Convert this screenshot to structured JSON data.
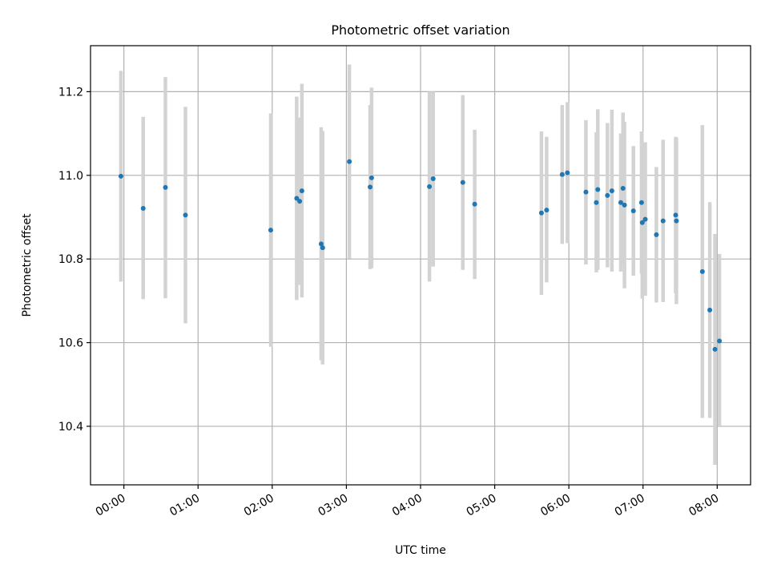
{
  "chart_data": {
    "type": "scatter",
    "title": "Photometric offset variation",
    "xlabel": "UTC time",
    "ylabel": "Photometric offset",
    "xlim": [
      -0.45,
      8.45
    ],
    "ylim": [
      10.26,
      11.31
    ],
    "grid": true,
    "x_ticks": [
      {
        "value": 0,
        "label": "00:00"
      },
      {
        "value": 1,
        "label": "01:00"
      },
      {
        "value": 2,
        "label": "02:00"
      },
      {
        "value": 3,
        "label": "03:00"
      },
      {
        "value": 4,
        "label": "04:00"
      },
      {
        "value": 5,
        "label": "05:00"
      },
      {
        "value": 6,
        "label": "06:00"
      },
      {
        "value": 7,
        "label": "07:00"
      },
      {
        "value": 8,
        "label": "08:00"
      }
    ],
    "y_ticks": [
      {
        "value": 10.4,
        "label": "10.4"
      },
      {
        "value": 10.6,
        "label": "10.6"
      },
      {
        "value": 10.8,
        "label": "10.8"
      },
      {
        "value": 11.0,
        "label": "11.0"
      },
      {
        "value": 11.2,
        "label": "11.2"
      }
    ],
    "marker_color": "#1f77b4",
    "errorbar_color": "#d3d3d3",
    "series": [
      {
        "name": "offset",
        "points": [
          {
            "x": -0.04,
            "y": 10.998,
            "ylo": 10.746,
            "yhi": 11.25
          },
          {
            "x": 0.26,
            "y": 10.921,
            "ylo": 10.704,
            "yhi": 11.14
          },
          {
            "x": 0.56,
            "y": 10.971,
            "ylo": 10.706,
            "yhi": 11.235
          },
          {
            "x": 0.83,
            "y": 10.905,
            "ylo": 10.646,
            "yhi": 11.164
          },
          {
            "x": 1.98,
            "y": 10.869,
            "ylo": 10.59,
            "yhi": 11.148
          },
          {
            "x": 2.33,
            "y": 10.945,
            "ylo": 10.702,
            "yhi": 11.188
          },
          {
            "x": 2.37,
            "y": 10.938,
            "ylo": 10.738,
            "yhi": 11.138
          },
          {
            "x": 2.4,
            "y": 10.963,
            "ylo": 10.708,
            "yhi": 11.219
          },
          {
            "x": 2.66,
            "y": 10.836,
            "ylo": 10.558,
            "yhi": 11.115
          },
          {
            "x": 2.68,
            "y": 10.827,
            "ylo": 10.548,
            "yhi": 11.106
          },
          {
            "x": 3.04,
            "y": 11.033,
            "ylo": 10.801,
            "yhi": 11.265
          },
          {
            "x": 3.32,
            "y": 10.972,
            "ylo": 10.776,
            "yhi": 11.168
          },
          {
            "x": 3.34,
            "y": 10.994,
            "ylo": 10.778,
            "yhi": 11.21
          },
          {
            "x": 4.12,
            "y": 10.973,
            "ylo": 10.746,
            "yhi": 11.2
          },
          {
            "x": 4.17,
            "y": 10.992,
            "ylo": 10.782,
            "yhi": 11.2
          },
          {
            "x": 4.57,
            "y": 10.983,
            "ylo": 10.774,
            "yhi": 11.192
          },
          {
            "x": 4.73,
            "y": 10.931,
            "ylo": 10.752,
            "yhi": 11.109
          },
          {
            "x": 5.63,
            "y": 10.91,
            "ylo": 10.714,
            "yhi": 11.105
          },
          {
            "x": 5.7,
            "y": 10.917,
            "ylo": 10.744,
            "yhi": 11.092
          },
          {
            "x": 5.91,
            "y": 11.002,
            "ylo": 10.836,
            "yhi": 11.168
          },
          {
            "x": 5.98,
            "y": 11.006,
            "ylo": 10.838,
            "yhi": 11.175
          },
          {
            "x": 6.23,
            "y": 10.96,
            "ylo": 10.787,
            "yhi": 11.132
          },
          {
            "x": 6.37,
            "y": 10.935,
            "ylo": 10.768,
            "yhi": 11.103
          },
          {
            "x": 6.39,
            "y": 10.966,
            "ylo": 10.774,
            "yhi": 11.158
          },
          {
            "x": 6.52,
            "y": 10.952,
            "ylo": 10.78,
            "yhi": 11.125
          },
          {
            "x": 6.58,
            "y": 10.963,
            "ylo": 10.77,
            "yhi": 11.157
          },
          {
            "x": 6.7,
            "y": 10.935,
            "ylo": 10.77,
            "yhi": 11.1
          },
          {
            "x": 6.73,
            "y": 10.969,
            "ylo": 10.788,
            "yhi": 11.15
          },
          {
            "x": 6.75,
            "y": 10.929,
            "ylo": 10.73,
            "yhi": 11.128
          },
          {
            "x": 6.87,
            "y": 10.915,
            "ylo": 10.76,
            "yhi": 11.07
          },
          {
            "x": 6.98,
            "y": 10.935,
            "ylo": 10.765,
            "yhi": 11.105
          },
          {
            "x": 6.99,
            "y": 10.887,
            "ylo": 10.705,
            "yhi": 11.069
          },
          {
            "x": 7.03,
            "y": 10.895,
            "ylo": 10.712,
            "yhi": 11.079
          },
          {
            "x": 7.18,
            "y": 10.858,
            "ylo": 10.696,
            "yhi": 11.02
          },
          {
            "x": 7.27,
            "y": 10.891,
            "ylo": 10.697,
            "yhi": 11.085
          },
          {
            "x": 7.44,
            "y": 10.905,
            "ylo": 10.718,
            "yhi": 11.092
          },
          {
            "x": 7.45,
            "y": 10.891,
            "ylo": 10.692,
            "yhi": 11.09
          },
          {
            "x": 7.8,
            "y": 10.77,
            "ylo": 10.42,
            "yhi": 11.12
          },
          {
            "x": 7.9,
            "y": 10.678,
            "ylo": 10.42,
            "yhi": 10.936
          },
          {
            "x": 7.97,
            "y": 10.584,
            "ylo": 10.308,
            "yhi": 10.86
          },
          {
            "x": 8.03,
            "y": 10.604,
            "ylo": 10.398,
            "yhi": 10.812
          }
        ]
      }
    ]
  }
}
